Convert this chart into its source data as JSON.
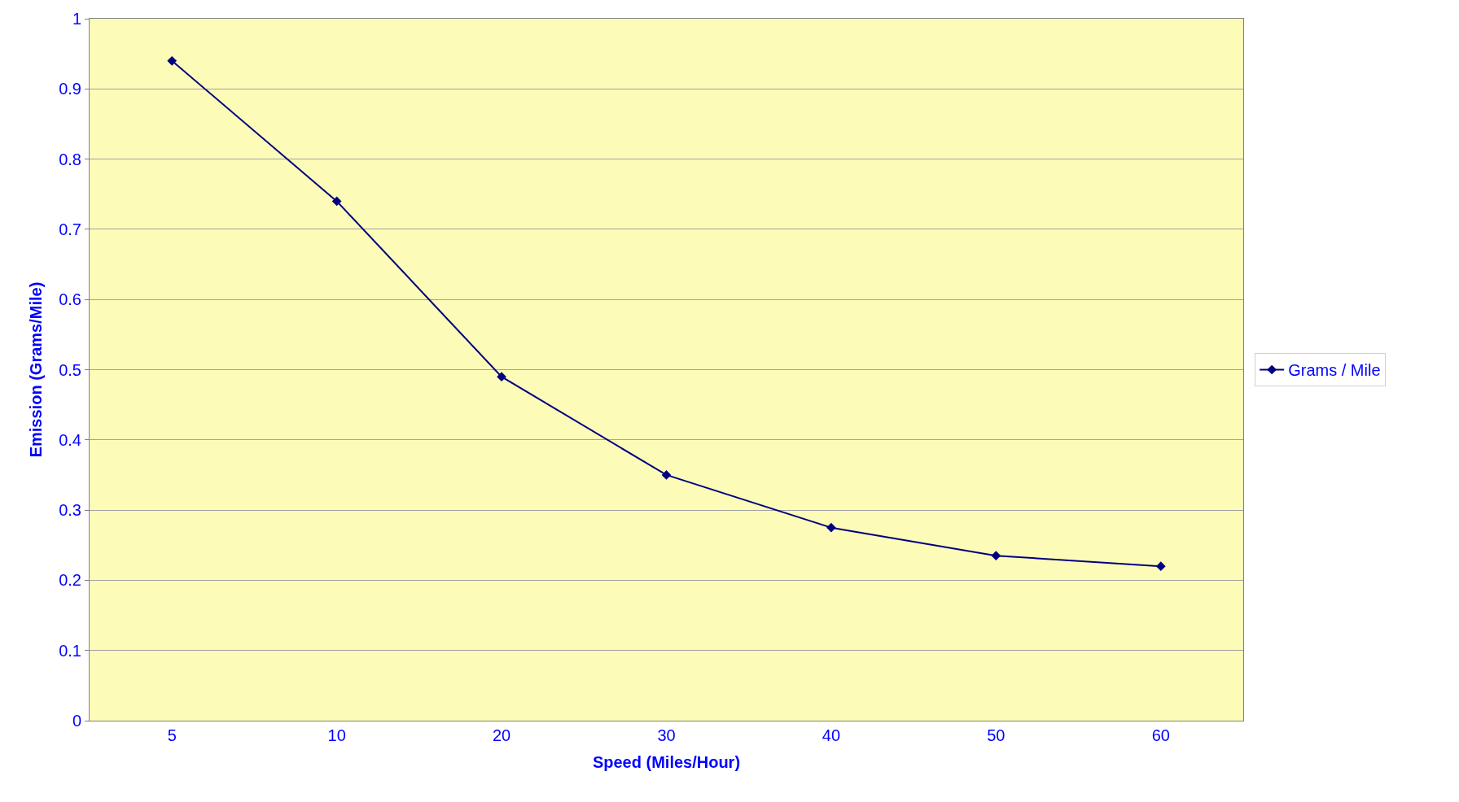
{
  "chart_data": {
    "type": "line",
    "xlabel": "Speed (Miles/Hour)",
    "ylabel": "Emission (Grams/Mile)",
    "categories": [
      "5",
      "10",
      "20",
      "30",
      "40",
      "50",
      "60"
    ],
    "series": [
      {
        "name": "Grams / Mile",
        "color": "#000080",
        "values": [
          0.94,
          0.74,
          0.49,
          0.35,
          0.275,
          0.235,
          0.22
        ]
      }
    ],
    "ylim": [
      0,
      1
    ],
    "yticks": [
      0,
      0.1,
      0.2,
      0.3,
      0.4,
      0.5,
      0.6,
      0.7,
      0.8,
      0.9,
      1
    ],
    "grid": "y",
    "legend": "right",
    "marker": "diamond",
    "line_style": "solid"
  }
}
